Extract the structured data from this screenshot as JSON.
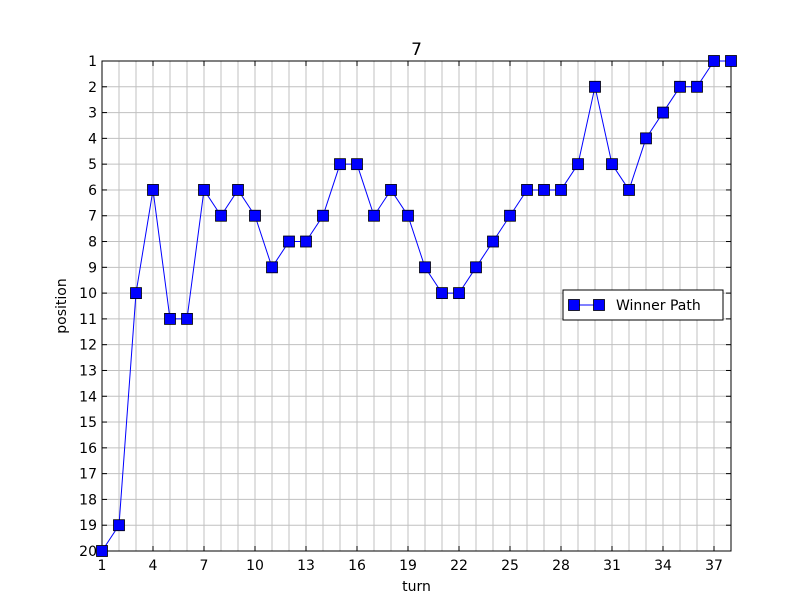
{
  "chart_data": {
    "type": "line",
    "title": "7",
    "xlabel": "turn",
    "ylabel": "position",
    "xlim": [
      1,
      38
    ],
    "ylim": [
      20,
      1
    ],
    "y_inverted": true,
    "grid": true,
    "legend_placement": "center-right",
    "xticks": [
      1,
      4,
      7,
      10,
      13,
      16,
      19,
      22,
      25,
      28,
      31,
      34,
      37
    ],
    "yticks": [
      1,
      2,
      3,
      4,
      5,
      6,
      7,
      8,
      9,
      10,
      11,
      12,
      13,
      14,
      15,
      16,
      17,
      18,
      19,
      20
    ],
    "series": [
      {
        "name": "Winner Path",
        "color": "#0000ff",
        "marker": "square",
        "x": [
          1,
          2,
          3,
          4,
          5,
          6,
          7,
          8,
          9,
          10,
          11,
          12,
          13,
          14,
          15,
          16,
          17,
          18,
          19,
          20,
          21,
          22,
          23,
          24,
          25,
          26,
          27,
          28,
          29,
          30,
          31,
          32,
          33,
          34,
          35,
          36,
          37,
          38
        ],
        "y": [
          20,
          19,
          10,
          6,
          11,
          11,
          6,
          7,
          6,
          7,
          9,
          8,
          8,
          7,
          5,
          5,
          7,
          6,
          7,
          9,
          10,
          10,
          9,
          8,
          7,
          6,
          6,
          6,
          5,
          2,
          5,
          6,
          4,
          3,
          2,
          2,
          1,
          1
        ]
      }
    ]
  }
}
